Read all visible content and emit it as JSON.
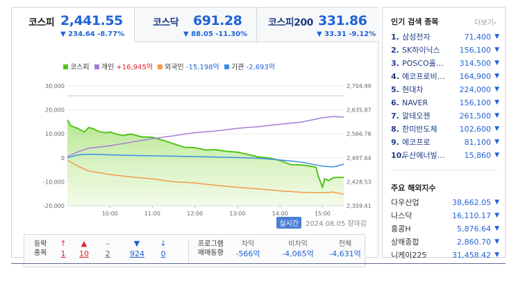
{
  "tabs": [
    {
      "name": "코스피",
      "value": "2,441.55",
      "change": "▼ 234.64 -8.77%"
    },
    {
      "name": "코스닥",
      "value": "691.28",
      "change": "▼ 88.05 -11.30%"
    },
    {
      "name": "코스피200",
      "value": "331.86",
      "change": "▼ 33.31 -9.12%"
    }
  ],
  "legend": {
    "kospi": "코스피",
    "individual": "개인",
    "individual_val": "+16,945억",
    "foreign": "외국인",
    "foreign_val": "-15,198억",
    "institution": "기관",
    "institution_val": "-2,693억"
  },
  "colors": {
    "kospi": "#52c41a",
    "individual": "#a57bd6",
    "foreign": "#f29a4a",
    "institution": "#3a8ee6",
    "up": "#e0202a",
    "down": "#1f62d9"
  },
  "chart_data": {
    "type": "line",
    "x_ticks": [
      "10:00",
      "11:00",
      "12:00",
      "13:00",
      "14:00",
      "15:00"
    ],
    "y_left_ticks": [
      "30,000",
      "20,000",
      "10,000",
      "0",
      "-10,000",
      "-20,000"
    ],
    "y_left_values": [
      30000,
      20000,
      10000,
      0,
      -10000,
      -20000
    ],
    "y_right_ticks": [
      "2,704.99",
      "2,635.87",
      "2,566.76",
      "2,497.64",
      "2,428.53",
      "2,359.41"
    ],
    "y_right_values": [
      2704.99,
      2635.87,
      2566.76,
      2497.64,
      2428.53,
      2359.41
    ],
    "x_range": [
      9.0,
      15.5
    ],
    "ylim_left": [
      -20000,
      30000
    ],
    "ylim_right": [
      2359.41,
      2704.99
    ],
    "prev_close_line": 2676.19,
    "series": [
      {
        "name": "코스피",
        "axis": "right",
        "x": [
          9.0,
          9.08,
          9.25,
          9.4,
          9.5,
          9.6,
          9.75,
          9.9,
          10.0,
          10.15,
          10.3,
          10.5,
          10.75,
          11.0,
          11.25,
          11.5,
          11.75,
          12.0,
          12.25,
          12.5,
          12.75,
          13.0,
          13.25,
          13.5,
          13.75,
          14.0,
          14.25,
          14.5,
          14.75,
          14.85,
          14.9,
          15.0,
          15.05,
          15.15,
          15.25,
          15.35,
          15.5
        ],
        "y": [
          2607,
          2590,
          2582,
          2572,
          2585,
          2582,
          2573,
          2570,
          2572,
          2566,
          2562,
          2566,
          2558,
          2557,
          2548,
          2538,
          2528,
          2527,
          2520,
          2521,
          2516,
          2514,
          2507,
          2500,
          2497,
          2490,
          2478,
          2477,
          2473,
          2470,
          2445,
          2413,
          2437,
          2432,
          2440,
          2441,
          2441
        ]
      },
      {
        "name": "개인",
        "axis": "left",
        "x": [
          9.0,
          9.25,
          9.5,
          10.0,
          10.5,
          11.0,
          11.5,
          12.0,
          12.5,
          13.0,
          13.5,
          14.0,
          14.5,
          14.75,
          15.0,
          15.25,
          15.5
        ],
        "y": [
          500,
          2500,
          4000,
          5000,
          6500,
          8000,
          9200,
          10500,
          11200,
          12300,
          13000,
          14000,
          14900,
          15800,
          16700,
          17200,
          16945
        ]
      },
      {
        "name": "외국인",
        "axis": "left",
        "x": [
          9.0,
          9.25,
          9.5,
          10.0,
          10.5,
          11.0,
          11.5,
          12.0,
          12.5,
          13.0,
          13.5,
          14.0,
          14.5,
          15.0,
          15.25,
          15.5
        ],
        "y": [
          -1000,
          -3500,
          -5500,
          -7000,
          -8000,
          -8800,
          -10000,
          -10500,
          -11500,
          -12300,
          -13000,
          -13800,
          -14400,
          -14600,
          -14300,
          -15198
        ]
      },
      {
        "name": "기관",
        "axis": "left",
        "x": [
          9.0,
          9.25,
          9.5,
          10.0,
          10.5,
          11.0,
          11.5,
          12.0,
          12.5,
          13.0,
          13.5,
          14.0,
          14.5,
          15.0,
          15.25,
          15.5
        ],
        "y": [
          0,
          1200,
          1500,
          1200,
          1000,
          800,
          700,
          500,
          300,
          100,
          -200,
          -900,
          -1800,
          -3500,
          -3800,
          -2693
        ]
      }
    ]
  },
  "chart_footer": {
    "live": "실시간",
    "time": "2024.08.05 장마감"
  },
  "stats": {
    "label_top": "등락",
    "label_bottom": "종목",
    "counts": [
      {
        "name": "upper-limit",
        "arrow": "↑",
        "value": "1",
        "color": "up"
      },
      {
        "name": "rise",
        "arrow": "▲",
        "value": "10",
        "color": "up"
      },
      {
        "name": "unchanged",
        "arrow": "–",
        "value": "2",
        "color": "flat"
      },
      {
        "name": "fall",
        "arrow": "▼",
        "value": "924",
        "color": "down"
      },
      {
        "name": "lower-limit",
        "arrow": "↓",
        "value": "0",
        "color": "down"
      }
    ],
    "program_top": "프로그램",
    "program_bottom": "매매동향",
    "program": [
      {
        "head": "차익",
        "value": "-566억"
      },
      {
        "head": "비차익",
        "value": "-4,065억"
      },
      {
        "head": "전체",
        "value": "-4,631억"
      }
    ]
  },
  "popular": {
    "title": "인기 검색 종목",
    "more": "더보기",
    "items": [
      {
        "rank": "1.",
        "name": "삼성전자",
        "price": "71,400"
      },
      {
        "rank": "2.",
        "name": "SK하이닉스",
        "price": "156,100"
      },
      {
        "rank": "3.",
        "name": "POSCO홀…",
        "price": "314,500"
      },
      {
        "rank": "4.",
        "name": "에코프로비…",
        "price": "164,900"
      },
      {
        "rank": "5.",
        "name": "현대차",
        "price": "224,000"
      },
      {
        "rank": "6.",
        "name": "NAVER",
        "price": "156,100"
      },
      {
        "rank": "7.",
        "name": "알테오젠",
        "price": "261,500"
      },
      {
        "rank": "8.",
        "name": "한미반도체",
        "price": "102,600"
      },
      {
        "rank": "9.",
        "name": "에코프로",
        "price": "81,100"
      },
      {
        "rank": "10.",
        "name": "두산에너빌…",
        "price": "15,860"
      }
    ]
  },
  "overseas": {
    "title": "주요 해외지수",
    "items": [
      {
        "name": "다우산업",
        "value": "38,662.05"
      },
      {
        "name": "나스닥",
        "value": "16,110.17"
      },
      {
        "name": "홍콩H",
        "value": "5,876.64"
      },
      {
        "name": "상해종합",
        "value": "2,860.70"
      },
      {
        "name": "니케이225",
        "value": "31,458.42"
      }
    ]
  }
}
